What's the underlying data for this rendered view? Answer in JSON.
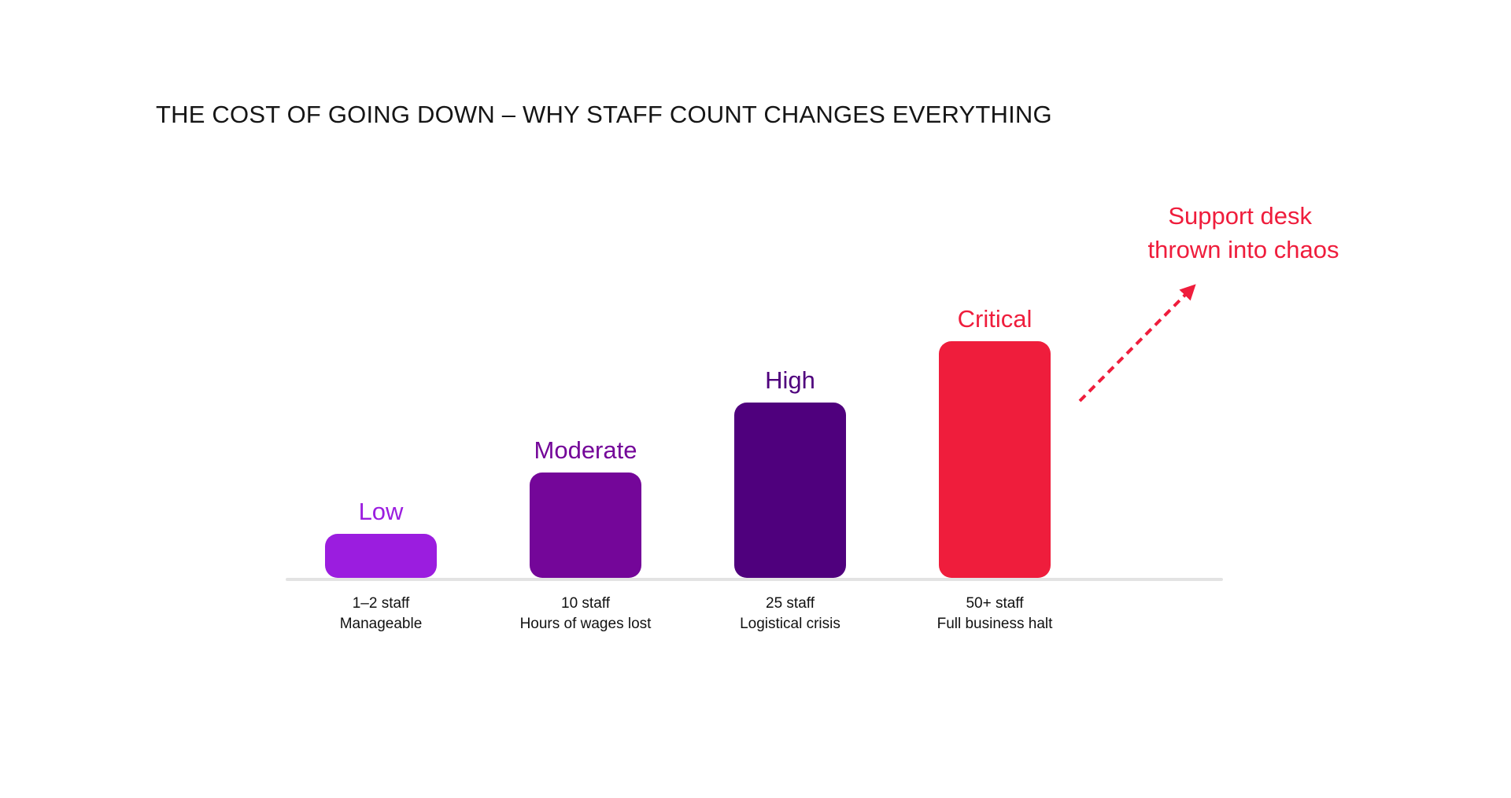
{
  "chart_data": {
    "type": "bar",
    "title": "THE COST OF GOING DOWN – WHY STAFF COUNT CHANGES EVERYTHING",
    "categories": [
      "1–2 staff",
      "10 staff",
      "25 staff",
      "50+ staff"
    ],
    "subcategories": [
      "Manageable",
      "Hours of wages lost",
      "Logistical crisis",
      "Full business halt"
    ],
    "levels": [
      "Low",
      "Moderate",
      "High",
      "Critical"
    ],
    "values": [
      1,
      2,
      3,
      4
    ],
    "colors": [
      "#9b1ddf",
      "#740699",
      "#4f007d",
      "#ef1d3c"
    ],
    "level_label_colors": [
      "#9b1ddf",
      "#740699",
      "#4f007d",
      "#ef1d3c"
    ],
    "annotation": {
      "lines": [
        "Support desk",
        "thrown into chaos"
      ],
      "color": "#ef1d3c"
    },
    "axis_color": "#e3e3e3",
    "grid": false,
    "legend": "none"
  }
}
